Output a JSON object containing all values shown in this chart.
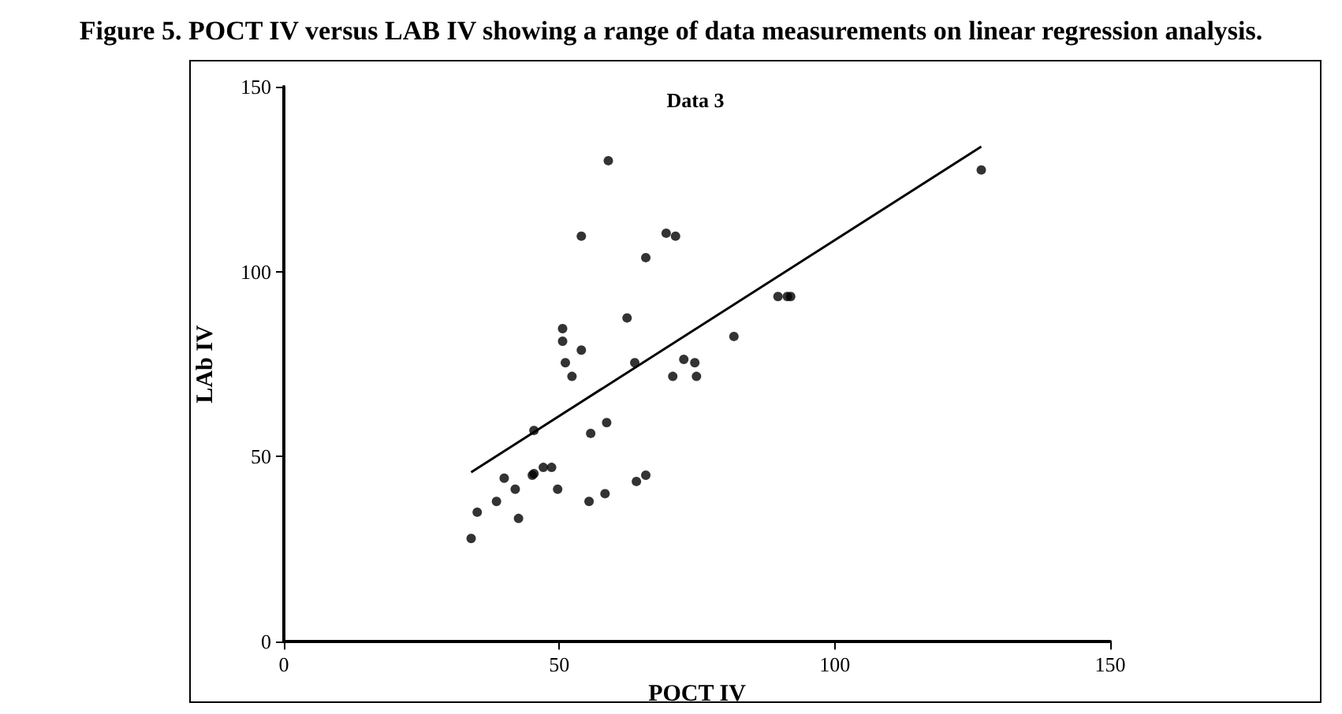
{
  "chart_data": {
    "type": "scatter",
    "title": "Figure 5. POCT IV versus LAB IV showing a range of data measurements on linear regression analysis.",
    "subtitle": "Data 3",
    "xlabel": "POCT IV",
    "ylabel": "LAb IV",
    "xlim": [
      0,
      150
    ],
    "xticks": [
      0,
      50,
      100,
      150
    ],
    "ylim": [
      0,
      150
    ],
    "yticks": [
      0,
      50,
      100,
      150
    ],
    "grid": false,
    "marker": "circle",
    "series": [
      {
        "color": "#000000",
        "x": [
          34,
          35.1,
          38.6,
          40,
          42,
          42.6,
          45.1,
          45.4,
          45.4,
          47.1,
          48.6,
          49.7,
          50.6,
          50.6,
          51.1,
          52.3,
          54,
          54,
          55.4,
          55.7,
          58.6,
          58.3,
          58.9,
          62.3,
          63.7,
          64,
          65.7,
          65.7,
          69.4,
          71.1,
          70.6,
          72.6,
          74.6,
          74.9,
          81.7,
          89.7,
          91.4,
          92,
          126.6
        ],
        "values": [
          27.9,
          35,
          37.9,
          44.2,
          41.2,
          33.3,
          45,
          45.4,
          57.1,
          47.1,
          47.1,
          41.2,
          84.6,
          81.2,
          75.4,
          71.7,
          78.8,
          109.6,
          37.9,
          56.3,
          59.2,
          40,
          130,
          87.5,
          75.4,
          43.3,
          45,
          103.8,
          110.4,
          109.6,
          71.7,
          76.3,
          75.4,
          71.7,
          82.5,
          93.3,
          93.3,
          93.3,
          127.5
        ]
      },
      {
        "type": "line",
        "color": "#000000",
        "marker": "none",
        "x": [
          34,
          126.6
        ],
        "values": [
          45.8,
          133.8
        ]
      }
    ]
  }
}
